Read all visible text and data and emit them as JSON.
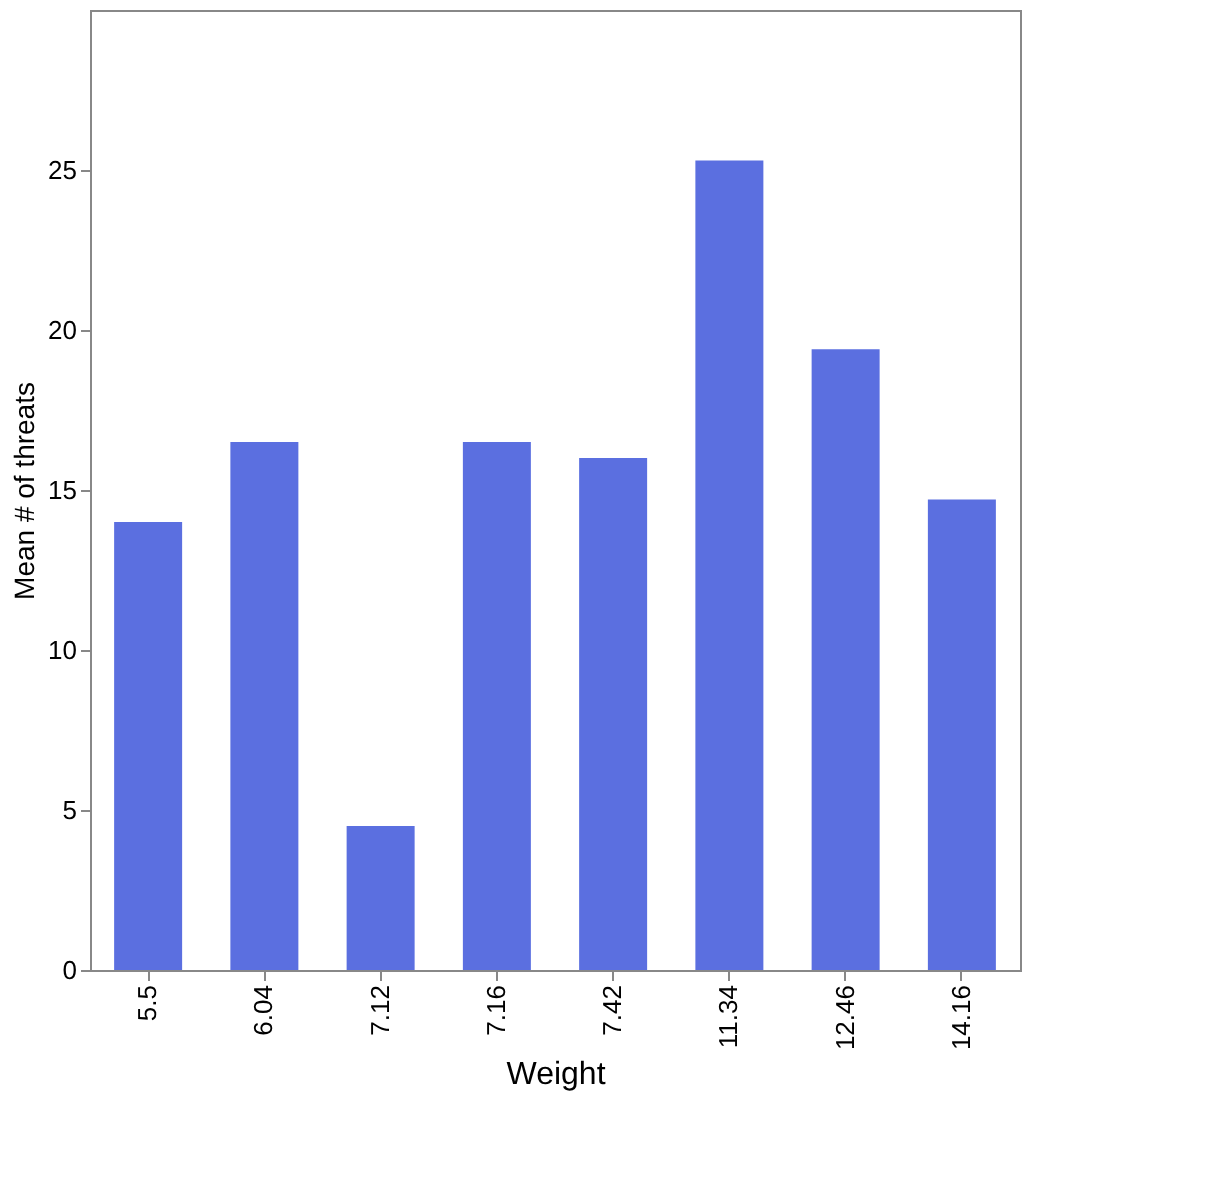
{
  "chart_data": {
    "type": "bar",
    "xlabel": "Weight",
    "ylabel": "Mean # of threats",
    "categories": [
      "5.5",
      "6.04",
      "7.12",
      "7.16",
      "7.42",
      "11.34",
      "12.46",
      "14.16"
    ],
    "values": [
      14.0,
      16.5,
      4.5,
      16.5,
      16.0,
      25.3,
      19.4,
      14.7
    ],
    "color": "#5b6fe0",
    "ylim": [
      0,
      30
    ],
    "yticks": [
      0,
      5,
      10,
      15,
      20,
      25
    ],
    "grid": false
  }
}
